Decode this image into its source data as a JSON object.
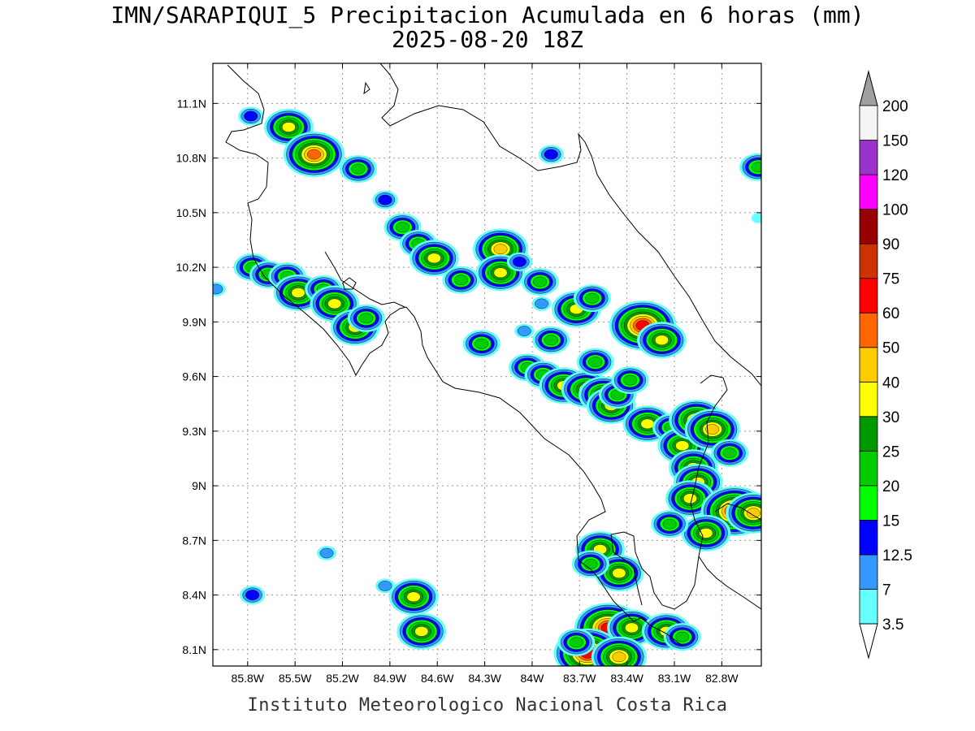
{
  "title_line1": "IMN/SARAPIQUI_5 Precipitacion Acumulada en 6 horas (mm)",
  "title_line2": "2025-08-20 18Z",
  "footer": "Instituto Meteorologico Nacional Costa Rica",
  "map": {
    "lon_range": [
      -86.02,
      -82.55
    ],
    "lat_range": [
      8.01,
      11.32
    ],
    "lat_ticks": [
      {
        "v": 11.1,
        "label": "11.1N"
      },
      {
        "v": 10.8,
        "label": "10.8N"
      },
      {
        "v": 10.5,
        "label": "10.5N"
      },
      {
        "v": 10.2,
        "label": "10.2N"
      },
      {
        "v": 9.9,
        "label": "9.9N"
      },
      {
        "v": 9.6,
        "label": "9.6N"
      },
      {
        "v": 9.3,
        "label": "9.3N"
      },
      {
        "v": 9.0,
        "label": "9N"
      },
      {
        "v": 8.7,
        "label": "8.7N"
      },
      {
        "v": 8.4,
        "label": "8.4N"
      },
      {
        "v": 8.1,
        "label": "8.1N"
      }
    ],
    "lon_ticks": [
      {
        "v": -85.8,
        "label": "85.8W"
      },
      {
        "v": -85.5,
        "label": "85.5W"
      },
      {
        "v": -85.2,
        "label": "85.2W"
      },
      {
        "v": -84.9,
        "label": "84.9W"
      },
      {
        "v": -84.6,
        "label": "84.6W"
      },
      {
        "v": -84.3,
        "label": "84.3W"
      },
      {
        "v": -84.0,
        "label": "84W"
      },
      {
        "v": -83.7,
        "label": "83.7W"
      },
      {
        "v": -83.4,
        "label": "83.4W"
      },
      {
        "v": -83.1,
        "label": "83.1W"
      },
      {
        "v": -82.8,
        "label": "82.8W"
      }
    ],
    "grid": "dotted"
  },
  "colorbar": {
    "levels": [
      "3.5",
      "7",
      "12.5",
      "15",
      "20",
      "25",
      "30",
      "40",
      "50",
      "60",
      "75",
      "90",
      "100",
      "120",
      "150",
      "200"
    ],
    "colors": [
      "#ffffff",
      "#66ffff",
      "#3399ff",
      "#0000ff",
      "#00ff00",
      "#00cc00",
      "#009900",
      "#ffff00",
      "#ffcc00",
      "#ff6600",
      "#ff0000",
      "#cc3300",
      "#990000",
      "#ff00ff",
      "#9933cc",
      "#f5f5f5",
      "#a0a0a0"
    ]
  },
  "precip_cells": [
    {
      "lon": -85.78,
      "lat": 11.03,
      "v": 14
    },
    {
      "lon": -85.54,
      "lat": 10.97,
      "v": 35
    },
    {
      "lon": -85.38,
      "lat": 10.82,
      "v": 55
    },
    {
      "lon": -85.1,
      "lat": 10.74,
      "v": 22
    },
    {
      "lon": -84.93,
      "lat": 10.57,
      "v": 13
    },
    {
      "lon": -84.82,
      "lat": 10.42,
      "v": 22
    },
    {
      "lon": -84.72,
      "lat": 10.33,
      "v": 22
    },
    {
      "lon": -84.62,
      "lat": 10.25,
      "v": 35
    },
    {
      "lon": -84.45,
      "lat": 10.13,
      "v": 22
    },
    {
      "lon": -84.2,
      "lat": 10.3,
      "v": 40
    },
    {
      "lon": -84.2,
      "lat": 10.17,
      "v": 35
    },
    {
      "lon": -84.08,
      "lat": 10.23,
      "v": 14
    },
    {
      "lon": -83.95,
      "lat": 10.12,
      "v": 22
    },
    {
      "lon": -85.77,
      "lat": 10.2,
      "v": 22
    },
    {
      "lon": -85.67,
      "lat": 10.16,
      "v": 22
    },
    {
      "lon": -85.55,
      "lat": 10.15,
      "v": 22
    },
    {
      "lon": -85.48,
      "lat": 10.06,
      "v": 35
    },
    {
      "lon": -85.32,
      "lat": 10.08,
      "v": 22
    },
    {
      "lon": -85.25,
      "lat": 10.0,
      "v": 35
    },
    {
      "lon": -85.12,
      "lat": 9.87,
      "v": 35
    },
    {
      "lon": -85.05,
      "lat": 9.92,
      "v": 22
    },
    {
      "lon": -86.0,
      "lat": 10.08,
      "v": 10
    },
    {
      "lon": -83.72,
      "lat": 9.97,
      "v": 35
    },
    {
      "lon": -83.62,
      "lat": 10.03,
      "v": 22
    },
    {
      "lon": -83.88,
      "lat": 9.8,
      "v": 22
    },
    {
      "lon": -84.32,
      "lat": 9.78,
      "v": 22
    },
    {
      "lon": -83.3,
      "lat": 9.88,
      "v": 60
    },
    {
      "lon": -83.18,
      "lat": 9.8,
      "v": 35
    },
    {
      "lon": -84.03,
      "lat": 9.65,
      "v": 22
    },
    {
      "lon": -83.93,
      "lat": 9.61,
      "v": 22
    },
    {
      "lon": -83.8,
      "lat": 9.55,
      "v": 35
    },
    {
      "lon": -83.66,
      "lat": 9.53,
      "v": 35
    },
    {
      "lon": -83.55,
      "lat": 9.5,
      "v": 35
    },
    {
      "lon": -83.5,
      "lat": 9.44,
      "v": 35
    },
    {
      "lon": -83.46,
      "lat": 9.5,
      "v": 22
    },
    {
      "lon": -83.38,
      "lat": 9.58,
      "v": 22
    },
    {
      "lon": -83.6,
      "lat": 9.68,
      "v": 22
    },
    {
      "lon": -83.27,
      "lat": 9.34,
      "v": 35
    },
    {
      "lon": -83.12,
      "lat": 9.32,
      "v": 22
    },
    {
      "lon": -83.05,
      "lat": 9.22,
      "v": 35
    },
    {
      "lon": -82.96,
      "lat": 9.36,
      "v": 42
    },
    {
      "lon": -82.86,
      "lat": 9.31,
      "v": 40
    },
    {
      "lon": -82.75,
      "lat": 9.18,
      "v": 22
    },
    {
      "lon": -82.98,
      "lat": 9.1,
      "v": 35
    },
    {
      "lon": -82.95,
      "lat": 9.02,
      "v": 35
    },
    {
      "lon": -83.0,
      "lat": 8.93,
      "v": 35
    },
    {
      "lon": -82.72,
      "lat": 8.86,
      "v": 65
    },
    {
      "lon": -82.6,
      "lat": 8.85,
      "v": 45
    },
    {
      "lon": -82.9,
      "lat": 8.74,
      "v": 35
    },
    {
      "lon": -83.13,
      "lat": 8.79,
      "v": 22
    },
    {
      "lon": -83.57,
      "lat": 8.65,
      "v": 35
    },
    {
      "lon": -83.45,
      "lat": 8.52,
      "v": 35
    },
    {
      "lon": -83.63,
      "lat": 8.57,
      "v": 22
    },
    {
      "lon": -83.52,
      "lat": 8.22,
      "v": 70
    },
    {
      "lon": -83.37,
      "lat": 8.22,
      "v": 35
    },
    {
      "lon": -83.65,
      "lat": 8.08,
      "v": 60
    },
    {
      "lon": -83.45,
      "lat": 8.06,
      "v": 40
    },
    {
      "lon": -83.72,
      "lat": 8.14,
      "v": 22
    },
    {
      "lon": -83.15,
      "lat": 8.2,
      "v": 35
    },
    {
      "lon": -83.05,
      "lat": 8.17,
      "v": 22
    },
    {
      "lon": -84.75,
      "lat": 8.39,
      "v": 30
    },
    {
      "lon": -84.7,
      "lat": 8.2,
      "v": 35
    },
    {
      "lon": -85.77,
      "lat": 8.4,
      "v": 14
    },
    {
      "lon": -84.93,
      "lat": 8.45,
      "v": 10
    },
    {
      "lon": -85.3,
      "lat": 8.63,
      "v": 10
    },
    {
      "lon": -83.94,
      "lat": 10.0,
      "v": 8
    },
    {
      "lon": -84.05,
      "lat": 9.85,
      "v": 10
    },
    {
      "lon": -82.57,
      "lat": 10.75,
      "v": 22
    },
    {
      "lon": -83.88,
      "lat": 10.82,
      "v": 14
    },
    {
      "lon": -82.57,
      "lat": 10.47,
      "v": 5
    }
  ]
}
